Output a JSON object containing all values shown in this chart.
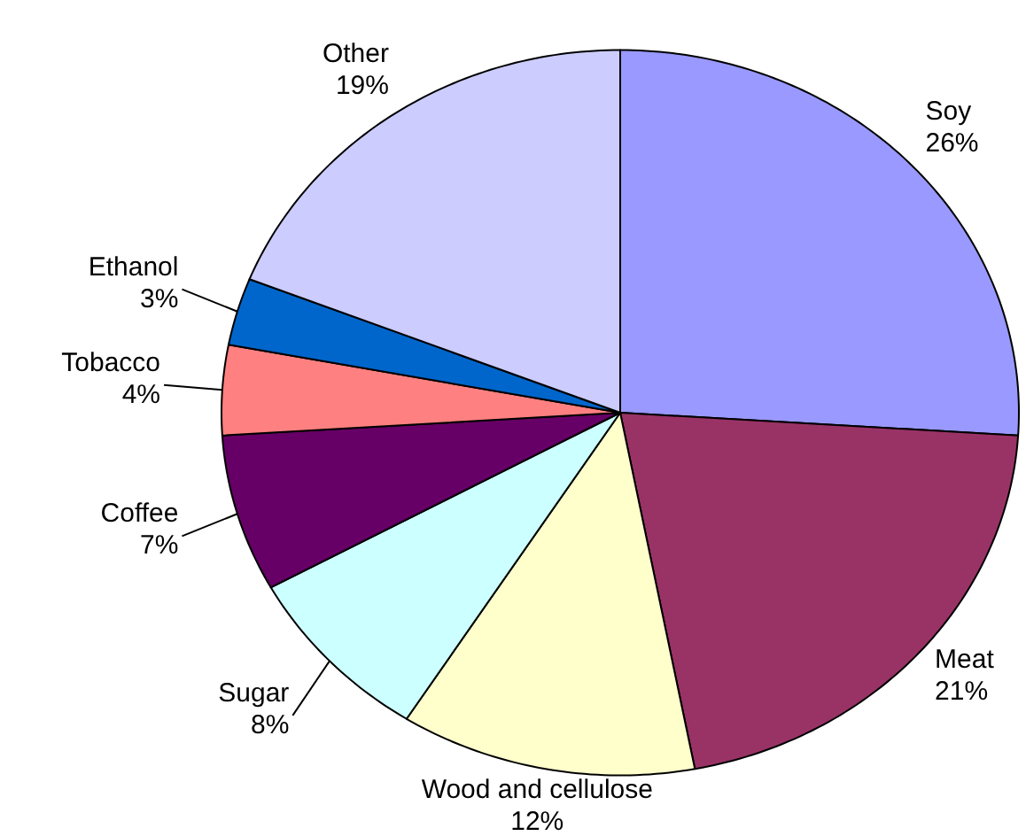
{
  "chart_data": {
    "type": "pie",
    "categories": [
      "Soy",
      "Meat",
      "Wood and cellulose",
      "Sugar",
      "Coffee",
      "Tobacco",
      "Ethanol",
      "Other"
    ],
    "values": [
      26,
      21,
      12,
      8,
      7,
      4,
      3,
      19
    ],
    "value_labels": [
      "26%",
      "21%",
      "12%",
      "8%",
      "7%",
      "4%",
      "3%",
      "19%"
    ],
    "colors": [
      "#9999ff",
      "#993366",
      "#ffffcc",
      "#ccffff",
      "#660066",
      "#ff8080",
      "#0066cc",
      "#ccccff"
    ]
  }
}
